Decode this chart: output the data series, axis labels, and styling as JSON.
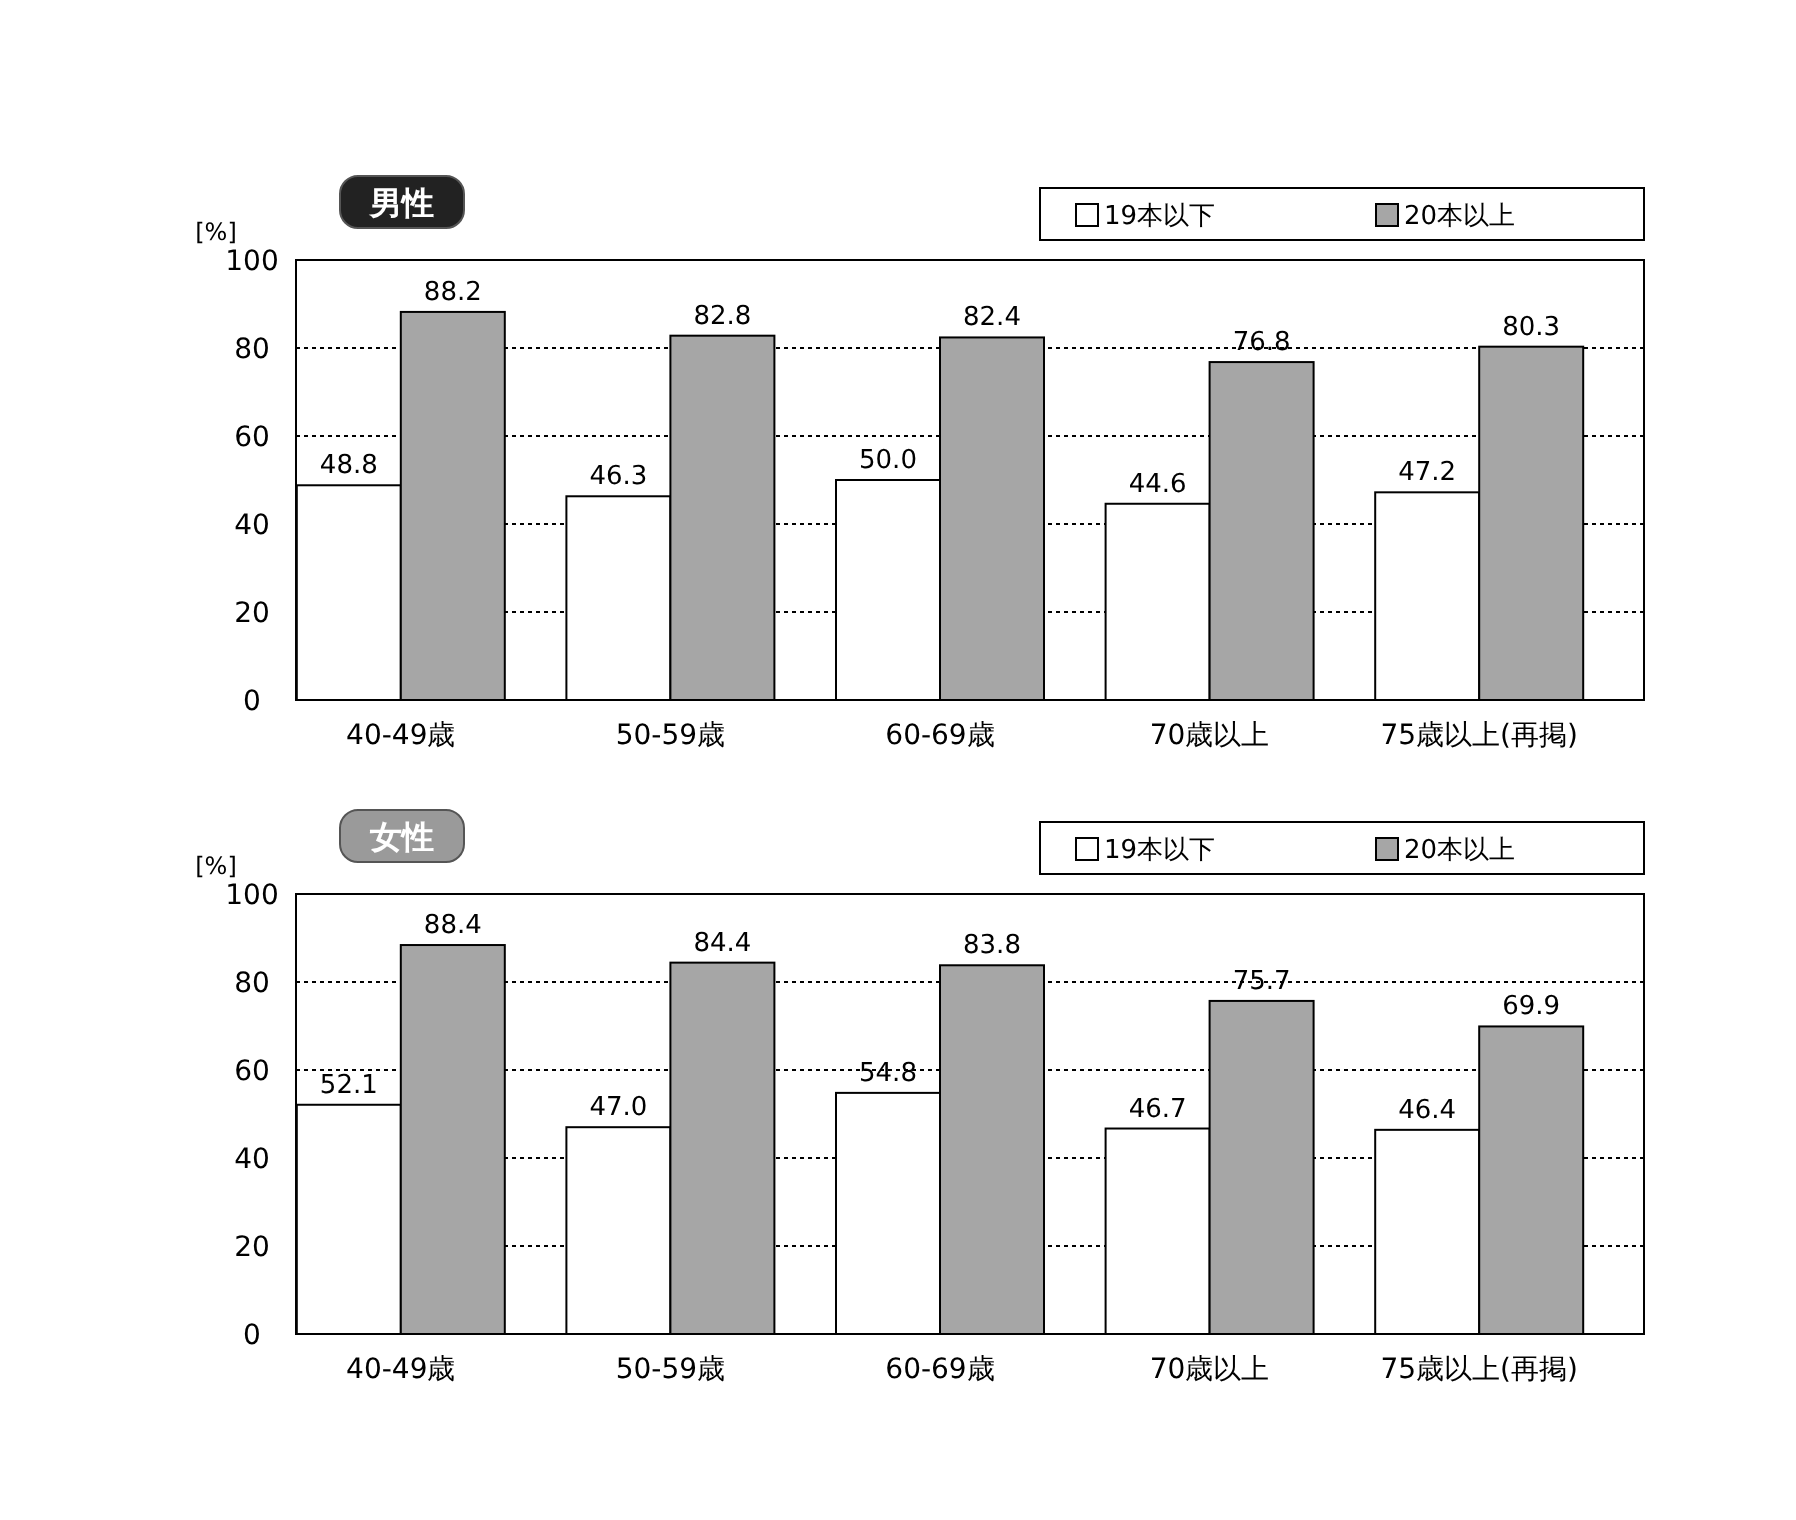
{
  "chart_data": [
    {
      "type": "bar",
      "title": "男性",
      "ylabel": "[%]",
      "categories": [
        "40-49歳",
        "50-59歳",
        "60-69歳",
        "70歳以上",
        "75歳以上(再掲)"
      ],
      "series": [
        {
          "name": "19本以下",
          "color": "#ffffff",
          "values": [
            48.8,
            46.3,
            50.0,
            44.6,
            47.2
          ],
          "value_labels": [
            "48.8",
            "46.3",
            "50.0",
            "44.6",
            "47.2"
          ]
        },
        {
          "name": "20本以上",
          "color": "#a6a6a6",
          "values": [
            88.2,
            82.8,
            82.4,
            76.8,
            80.3
          ],
          "value_labels": [
            "88.2",
            "82.8",
            "82.4",
            "76.8",
            "80.3"
          ]
        }
      ],
      "ylim": [
        0,
        100
      ],
      "yticks": [
        0,
        20,
        40,
        60,
        80,
        100
      ],
      "grid": "y",
      "legend": "top right"
    },
    {
      "type": "bar",
      "title": "女性",
      "ylabel": "[%]",
      "categories": [
        "40-49歳",
        "50-59歳",
        "60-69歳",
        "70歳以上",
        "75歳以上(再掲)"
      ],
      "series": [
        {
          "name": "19本以下",
          "color": "#ffffff",
          "values": [
            52.1,
            47.0,
            54.8,
            46.7,
            46.4
          ],
          "value_labels": [
            "52.1",
            "47.0",
            "54.8",
            "46.7",
            "46.4"
          ]
        },
        {
          "name": "20本以上",
          "color": "#a6a6a6",
          "values": [
            88.4,
            84.4,
            83.8,
            75.7,
            69.9
          ],
          "value_labels": [
            "88.4",
            "84.4",
            "83.8",
            "75.7",
            "69.9"
          ]
        }
      ],
      "ylim": [
        0,
        100
      ],
      "yticks": [
        0,
        20,
        40,
        60,
        80,
        100
      ],
      "grid": "y",
      "legend": "top right"
    }
  ]
}
